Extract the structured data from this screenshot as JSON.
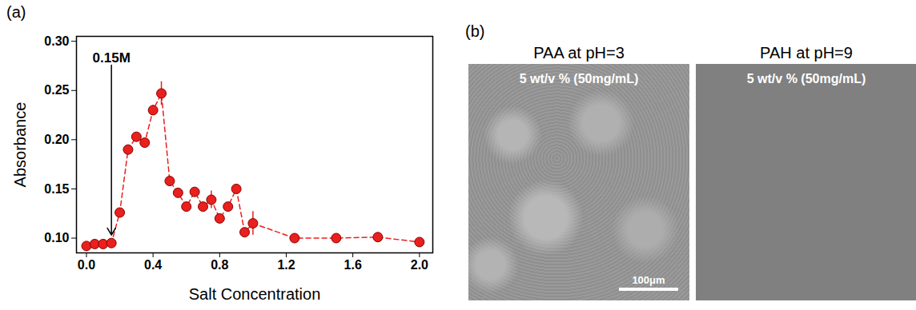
{
  "chart_data": {
    "type": "scatter",
    "panel_label": "(a)",
    "x_label": "Salt Concentration",
    "y_label": "Absorbance",
    "x": [
      0,
      0.05,
      0.1,
      0.15,
      0.2,
      0.25,
      0.3,
      0.35,
      0.4,
      0.45,
      0.5,
      0.55,
      0.6,
      0.65,
      0.7,
      0.75,
      0.8,
      0.85,
      0.9,
      0.95,
      1.0,
      1.25,
      1.5,
      1.75,
      2.0
    ],
    "values": [
      0.092,
      0.094,
      0.094,
      0.095,
      0.126,
      0.19,
      0.203,
      0.197,
      0.23,
      0.247,
      0.158,
      0.146,
      0.132,
      0.147,
      0.132,
      0.139,
      0.12,
      0.132,
      0.15,
      0.106,
      0.115,
      0.1,
      0.1,
      0.101,
      0.096
    ],
    "errors": [
      0.002,
      0.002,
      0.002,
      0.002,
      0.002,
      0.003,
      0.003,
      0.003,
      0.005,
      0.012,
      0.002,
      0.002,
      0.003,
      0.002,
      0.003,
      0.009,
      0.002,
      0.002,
      0.002,
      0.003,
      0.012,
      0.002,
      0.002,
      0.002,
      0.002
    ],
    "color": "#e8201e",
    "marker": "circle",
    "line_style": "dashed",
    "xlim": [
      -0.06,
      2.08
    ],
    "xticks": [
      {
        "value": 0,
        "label": "0.0"
      },
      {
        "value": 0.4,
        "label": "0.4"
      },
      {
        "value": 0.8,
        "label": "0.8"
      },
      {
        "value": 1.2,
        "label": "1.2"
      },
      {
        "value": 1.6,
        "label": "1.6"
      },
      {
        "value": 2.0,
        "label": "2.0"
      }
    ],
    "ylim": [
      0.085,
      0.305
    ],
    "yticks": [
      {
        "value": 0.1,
        "label": "0.10"
      },
      {
        "value": 0.15,
        "label": "0.15"
      },
      {
        "value": 0.2,
        "label": "0.20"
      },
      {
        "value": 0.25,
        "label": "0.25"
      },
      {
        "value": 0.3,
        "label": "0.30"
      }
    ],
    "annotations": [
      {
        "text": "0.15M",
        "x": 0.15
      }
    ]
  },
  "images": {
    "panel_label": "(b)",
    "panels": [
      {
        "title": "PAA at pH=3",
        "caption": "5 wt/v % (50mg/mL)",
        "scale_bar": "100μm"
      },
      {
        "title": "PAH at pH=9",
        "caption": "5 wt/v % (50mg/mL)"
      }
    ]
  }
}
